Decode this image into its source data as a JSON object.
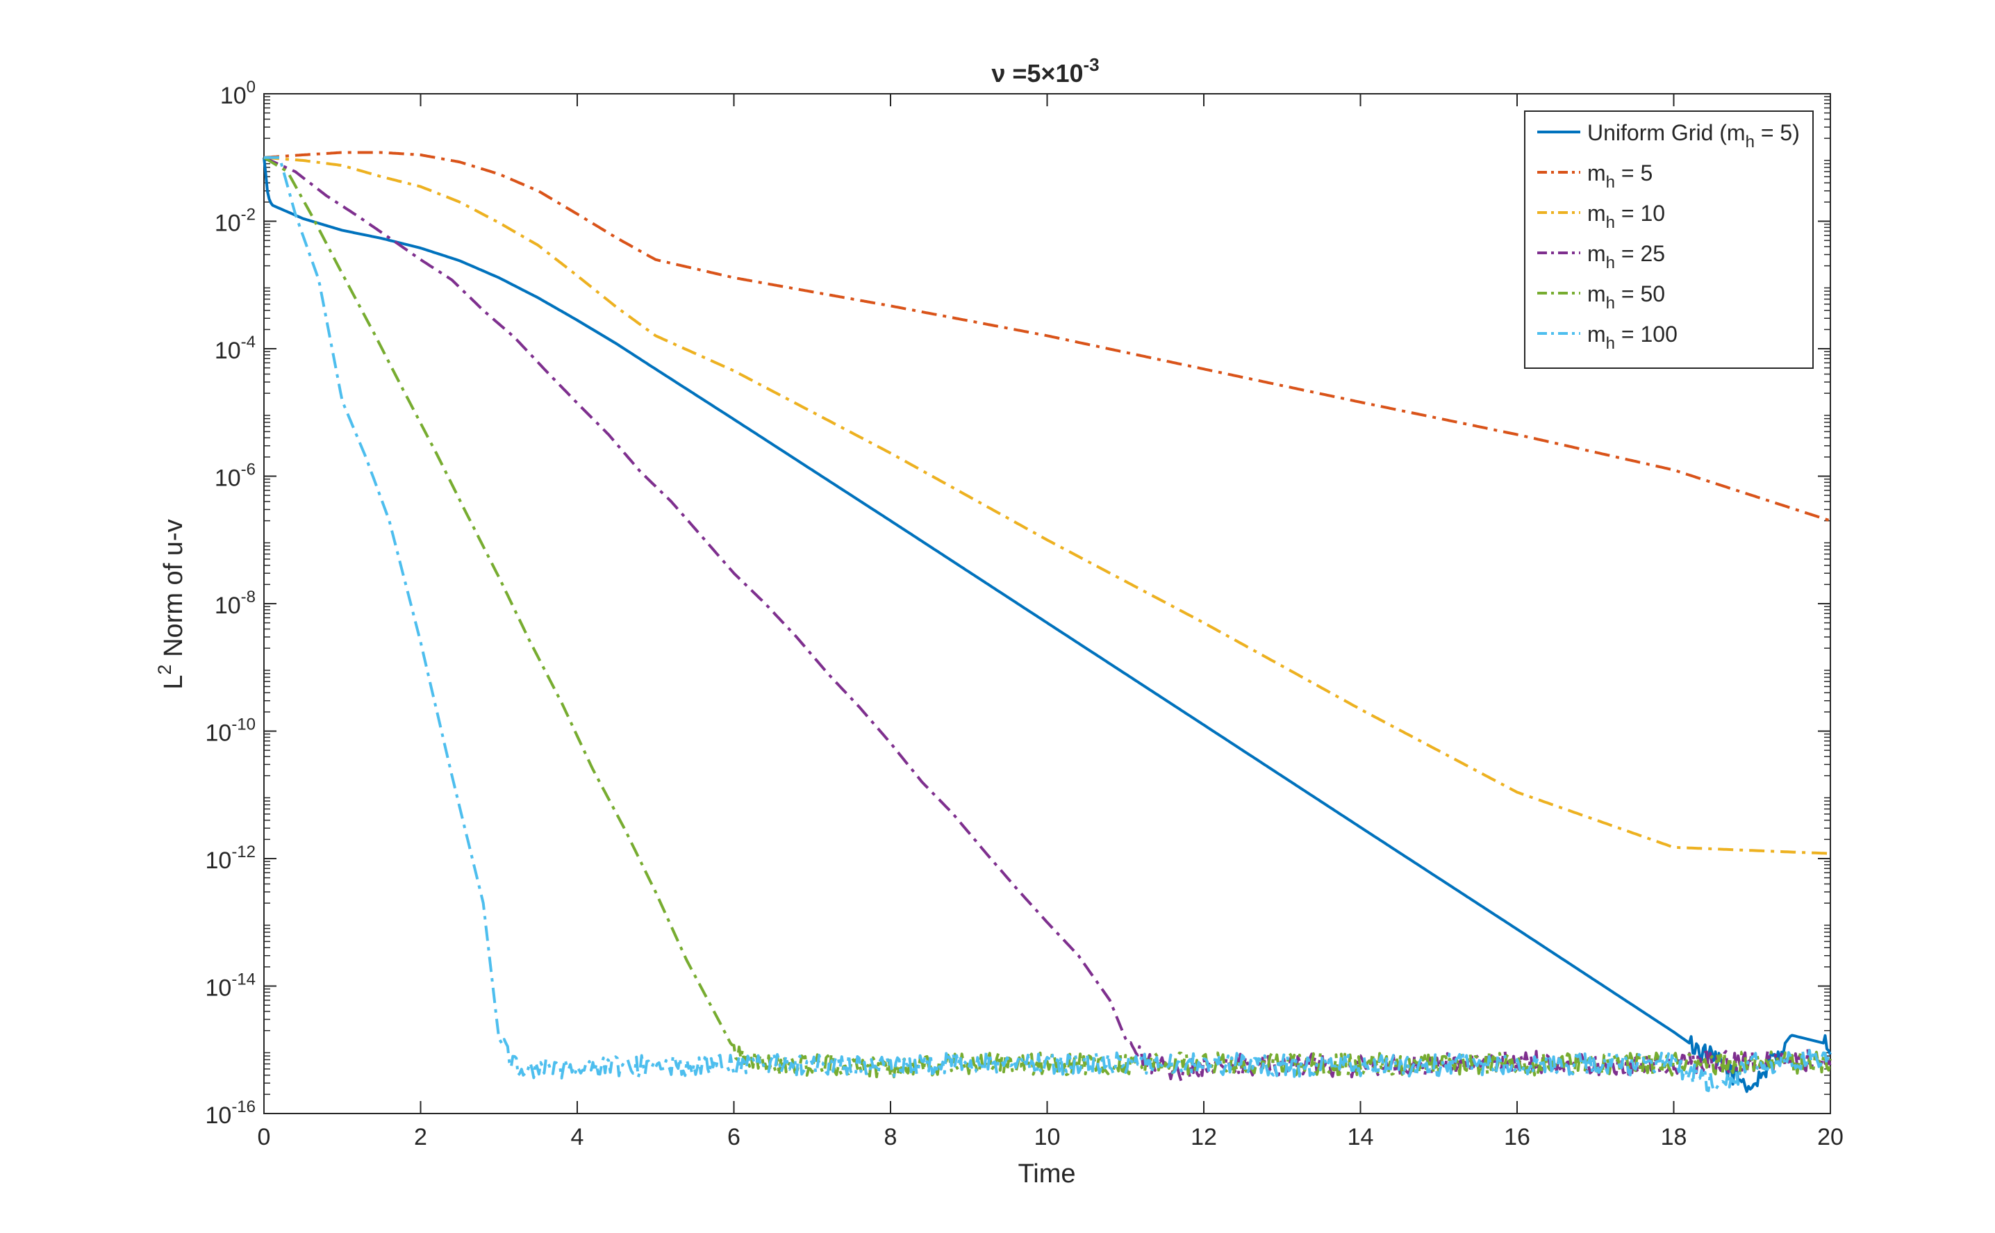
{
  "chart_data": {
    "type": "line",
    "title_prefix": "ν =5×10",
    "title_exp": "-3",
    "xlabel": "Time",
    "ylabel_base": "L",
    "ylabel_sup": "2",
    "ylabel_rest": " Norm of u-v",
    "xlim": [
      0,
      20
    ],
    "ylim": [
      1e-16,
      1
    ],
    "yscale": "log",
    "grid": false,
    "legend_position": "top-right",
    "x_ticks": [
      0,
      2,
      4,
      6,
      8,
      10,
      12,
      14,
      16,
      18,
      20
    ],
    "x_tick_labels": [
      "0",
      "2",
      "4",
      "6",
      "8",
      "10",
      "12",
      "14",
      "16",
      "18",
      "20"
    ],
    "y_ticks": [
      {
        "value": 1.0,
        "base": "10",
        "exp": "0"
      },
      {
        "value": 0.01,
        "base": "10",
        "exp": "-2"
      },
      {
        "value": 0.0001,
        "base": "10",
        "exp": "-4"
      },
      {
        "value": 1e-06,
        "base": "10",
        "exp": "-6"
      },
      {
        "value": 1e-08,
        "base": "10",
        "exp": "-8"
      },
      {
        "value": 1e-10,
        "base": "10",
        "exp": "-10"
      },
      {
        "value": 1e-12,
        "base": "10",
        "exp": "-12"
      },
      {
        "value": 1e-14,
        "base": "10",
        "exp": "-14"
      },
      {
        "value": 1e-16,
        "base": "10",
        "exp": "-16"
      }
    ],
    "series": [
      {
        "legend_base": "Uniform Grid (m",
        "legend_sub": "h",
        "legend_rest": " = 5)",
        "color": "#0072BD",
        "dash": "solid",
        "x": [
          0,
          0.02,
          0.05,
          0.1,
          0.5,
          1.0,
          1.5,
          2.0,
          2.5,
          3.0,
          3.5,
          4.0,
          4.5,
          5.0,
          6.0,
          8.0,
          10.0,
          12.0,
          14.0,
          16.0,
          18.0,
          19.0,
          19.5,
          20.0
        ],
        "y": [
          0.1,
          0.06,
          0.025,
          0.018,
          0.011,
          0.0072,
          0.0054,
          0.0038,
          0.0024,
          0.0013,
          0.00063,
          0.00028,
          0.00012,
          4.8e-05,
          7.8e-06,
          2e-07,
          5e-09,
          1.25e-10,
          3.1e-12,
          7.8e-14,
          1.9e-15,
          2.6e-16,
          1.7e-15,
          1.2e-15
        ]
      },
      {
        "legend_base": "m",
        "legend_sub": "h",
        "legend_rest": " = 5",
        "color": "#D95319",
        "dash": "dashdot",
        "x": [
          0,
          0.5,
          1.0,
          1.5,
          2.0,
          2.5,
          3.0,
          3.5,
          4.0,
          4.5,
          5.0,
          6.0,
          8.0,
          10.0,
          12.0,
          14.0,
          16.0,
          18.0,
          20.0
        ],
        "y": [
          0.1,
          0.11,
          0.12,
          0.12,
          0.11,
          0.085,
          0.055,
          0.03,
          0.013,
          0.0055,
          0.0025,
          0.0013,
          0.00047,
          0.00016,
          4.8e-05,
          1.45e-05,
          4.5e-06,
          1.25e-06,
          2e-07
        ]
      },
      {
        "legend_base": "m",
        "legend_sub": "h",
        "legend_rest": " = 10",
        "color": "#EDB120",
        "dash": "dashdot",
        "x": [
          0,
          0.5,
          1.0,
          1.5,
          2.0,
          2.5,
          3.0,
          3.5,
          4.0,
          4.5,
          5.0,
          6.0,
          8.0,
          10.0,
          12.0,
          14.0,
          16.0,
          18.0,
          20.0
        ],
        "y": [
          0.1,
          0.09,
          0.075,
          0.05,
          0.035,
          0.02,
          0.0095,
          0.0042,
          0.0014,
          0.00045,
          0.00016,
          4.5e-05,
          2.3e-06,
          1e-07,
          5e-09,
          2.2e-10,
          1.1e-11,
          1.5e-12,
          1.2e-12
        ]
      },
      {
        "legend_base": "m",
        "legend_sub": "h",
        "legend_rest": " = 25",
        "color": "#7E2F8E",
        "dash": "dashdot",
        "x": [
          0,
          0.4,
          0.8,
          1.2,
          1.6,
          2.0,
          2.4,
          2.8,
          3.2,
          3.6,
          4.0,
          4.4,
          4.8,
          5.2,
          5.6,
          6.0,
          6.4,
          6.8,
          7.2,
          7.6,
          8.0,
          8.4,
          8.8,
          9.2,
          9.6,
          10.0,
          10.4,
          10.8,
          11.0,
          11.2,
          11.6,
          12.0,
          13.0,
          14.0,
          15.0,
          16.0,
          17.0,
          18.0,
          19.0,
          20.0
        ],
        "y": [
          0.1,
          0.06,
          0.025,
          0.012,
          0.0055,
          0.0025,
          0.0012,
          0.0004,
          0.00015,
          4.5e-05,
          1.4e-05,
          4.5e-06,
          1.2e-06,
          4e-07,
          1.1e-07,
          3e-08,
          1e-08,
          3e-09,
          8e-10,
          2.4e-10,
          6.5e-11,
          1.6e-11,
          5e-12,
          1.3e-12,
          3.5e-13,
          1e-13,
          3e-14,
          6e-15,
          1.5e-15,
          7e-16,
          4.5e-16,
          5.5e-16,
          6e-16,
          5.5e-16,
          6e-16,
          6.5e-16,
          6e-16,
          6e-16,
          6.5e-16,
          7e-16
        ]
      },
      {
        "legend_base": "m",
        "legend_sub": "h",
        "legend_rest": " = 50",
        "color": "#77AC30",
        "dash": "dashdot",
        "x": [
          0,
          0.3,
          0.6,
          1.0,
          1.4,
          1.8,
          2.2,
          2.6,
          3.0,
          3.4,
          3.8,
          4.2,
          4.6,
          5.0,
          5.4,
          5.8,
          6.0,
          6.5,
          7.0,
          8.0,
          9.0,
          10.0,
          12.0,
          14.0,
          16.0,
          18.0,
          20.0
        ],
        "y": [
          0.1,
          0.06,
          0.013,
          0.0015,
          0.00018,
          2e-05,
          2.3e-06,
          2.4e-07,
          2.6e-08,
          2.5e-09,
          2.8e-10,
          2.5e-11,
          3e-12,
          3e-13,
          2.5e-14,
          3e-15,
          1e-15,
          5.5e-16,
          6e-16,
          5.5e-16,
          6e-16,
          6e-16,
          6e-16,
          6e-16,
          6e-16,
          6e-16,
          6.5e-16
        ]
      },
      {
        "legend_base": "m",
        "legend_sub": "h",
        "legend_rest": " = 100",
        "color": "#4DBEEE",
        "dash": "dashdot",
        "x": [
          0,
          0.2,
          0.4,
          0.7,
          1.0,
          1.3,
          1.6,
          2.0,
          2.4,
          2.8,
          3.0,
          3.2,
          3.4,
          4.0,
          5.0,
          6.0,
          7.0,
          8.0,
          9.0,
          10.0,
          12.0,
          14.0,
          16.0,
          18.0,
          18.6,
          19.0,
          20.0
        ],
        "y": [
          0.1,
          0.1,
          0.013,
          0.0012,
          1.5e-05,
          2e-06,
          2e-07,
          2.5e-09,
          2e-11,
          2e-13,
          1.5e-15,
          6e-16,
          5e-16,
          5.5e-16,
          5.5e-16,
          6e-16,
          6e-16,
          5.5e-16,
          6.5e-16,
          6e-16,
          6e-16,
          5.5e-16,
          6e-16,
          6e-16,
          2.5e-16,
          6e-16,
          7e-16
        ]
      }
    ]
  }
}
